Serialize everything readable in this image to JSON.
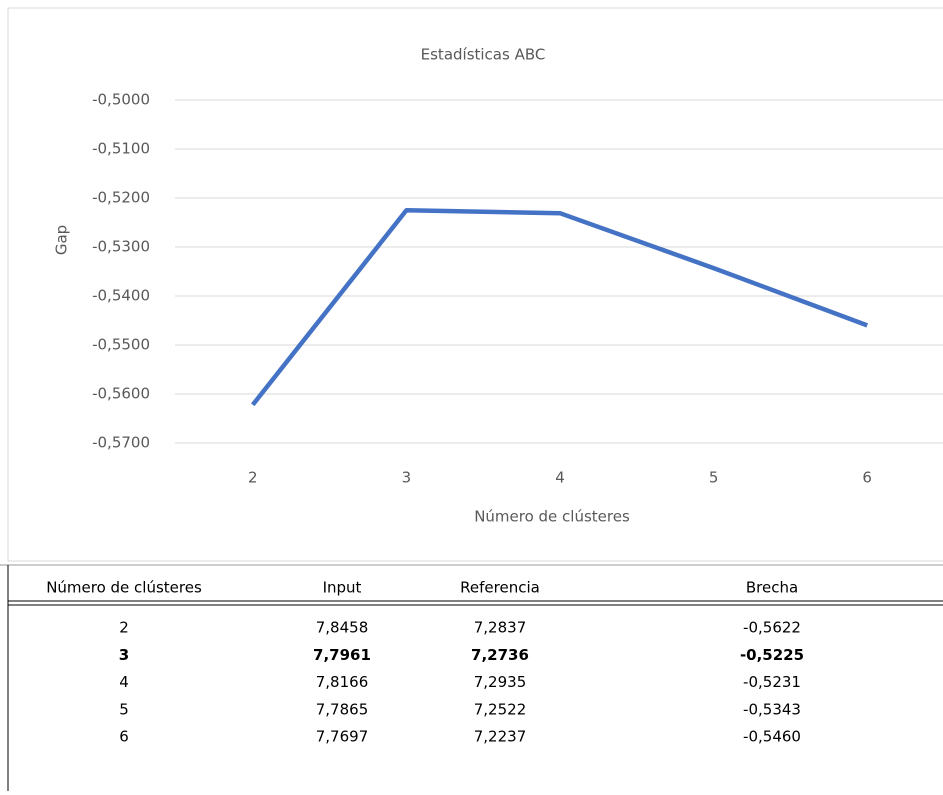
{
  "chart_data": {
    "type": "line",
    "title": "Estadísticas ABC",
    "x_label": "Número de clústeres",
    "y_label": "Gap",
    "categories": [
      "2",
      "3",
      "4",
      "5",
      "6"
    ],
    "series": [
      {
        "name": "Brecha",
        "color": "#4472c4",
        "values": [
          -0.5622,
          -0.5225,
          -0.5231,
          -0.5343,
          -0.546
        ]
      }
    ],
    "ylim": [
      -0.57,
      -0.5
    ],
    "yticks": [
      {
        "value": -0.5,
        "label": "-0,5000"
      },
      {
        "value": -0.51,
        "label": "-0,5100"
      },
      {
        "value": -0.52,
        "label": "-0,5200"
      },
      {
        "value": -0.53,
        "label": "-0,5300"
      },
      {
        "value": -0.54,
        "label": "-0,5400"
      },
      {
        "value": -0.55,
        "label": "-0,5500"
      },
      {
        "value": -0.56,
        "label": "-0,5600"
      },
      {
        "value": -0.57,
        "label": "-0,5700"
      }
    ],
    "grid": true,
    "legend": false
  },
  "table": {
    "header": [
      "Número de clústeres",
      "Input",
      "Referencia",
      "Brecha"
    ],
    "rows": [
      [
        "2",
        "7,8458",
        "7,2837",
        "-0,5622"
      ],
      [
        "3",
        "7,7961",
        "7,2736",
        "-0,5225"
      ],
      [
        "4",
        "7,8166",
        "7,2935",
        "-0,5231"
      ],
      [
        "5",
        "7,7865",
        "7,2522",
        "-0,5343"
      ],
      [
        "6",
        "7,7697",
        "7,2237",
        "-0,5460"
      ]
    ],
    "bold_row": 1
  }
}
